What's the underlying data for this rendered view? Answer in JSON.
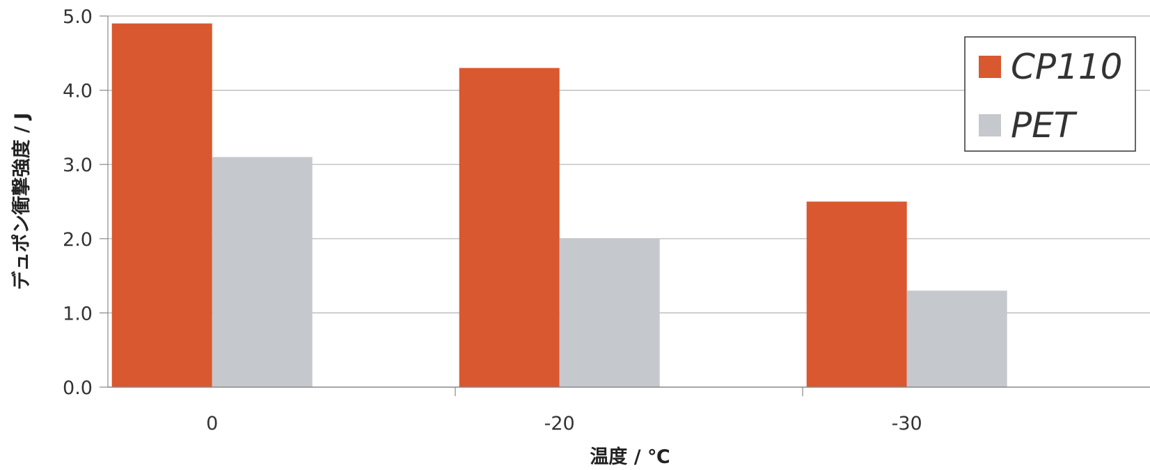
{
  "chart_data": {
    "type": "bar",
    "categories": [
      "0",
      "-20",
      "-30"
    ],
    "series": [
      {
        "name": "CP110",
        "values": [
          4.9,
          4.3,
          2.5
        ],
        "color": "#d9582f"
      },
      {
        "name": "PET",
        "values": [
          3.1,
          2.0,
          1.3
        ],
        "color": "#c5c8cc"
      }
    ],
    "xlabel": "温度 / ℃",
    "ylabel": "デュポン衝撃強度 / J",
    "ylim": [
      0,
      5
    ],
    "yticks": [
      "0.0",
      "1.0",
      "2.0",
      "3.0",
      "4.0",
      "5.0"
    ],
    "grid": true,
    "legend_position": "top-right"
  }
}
